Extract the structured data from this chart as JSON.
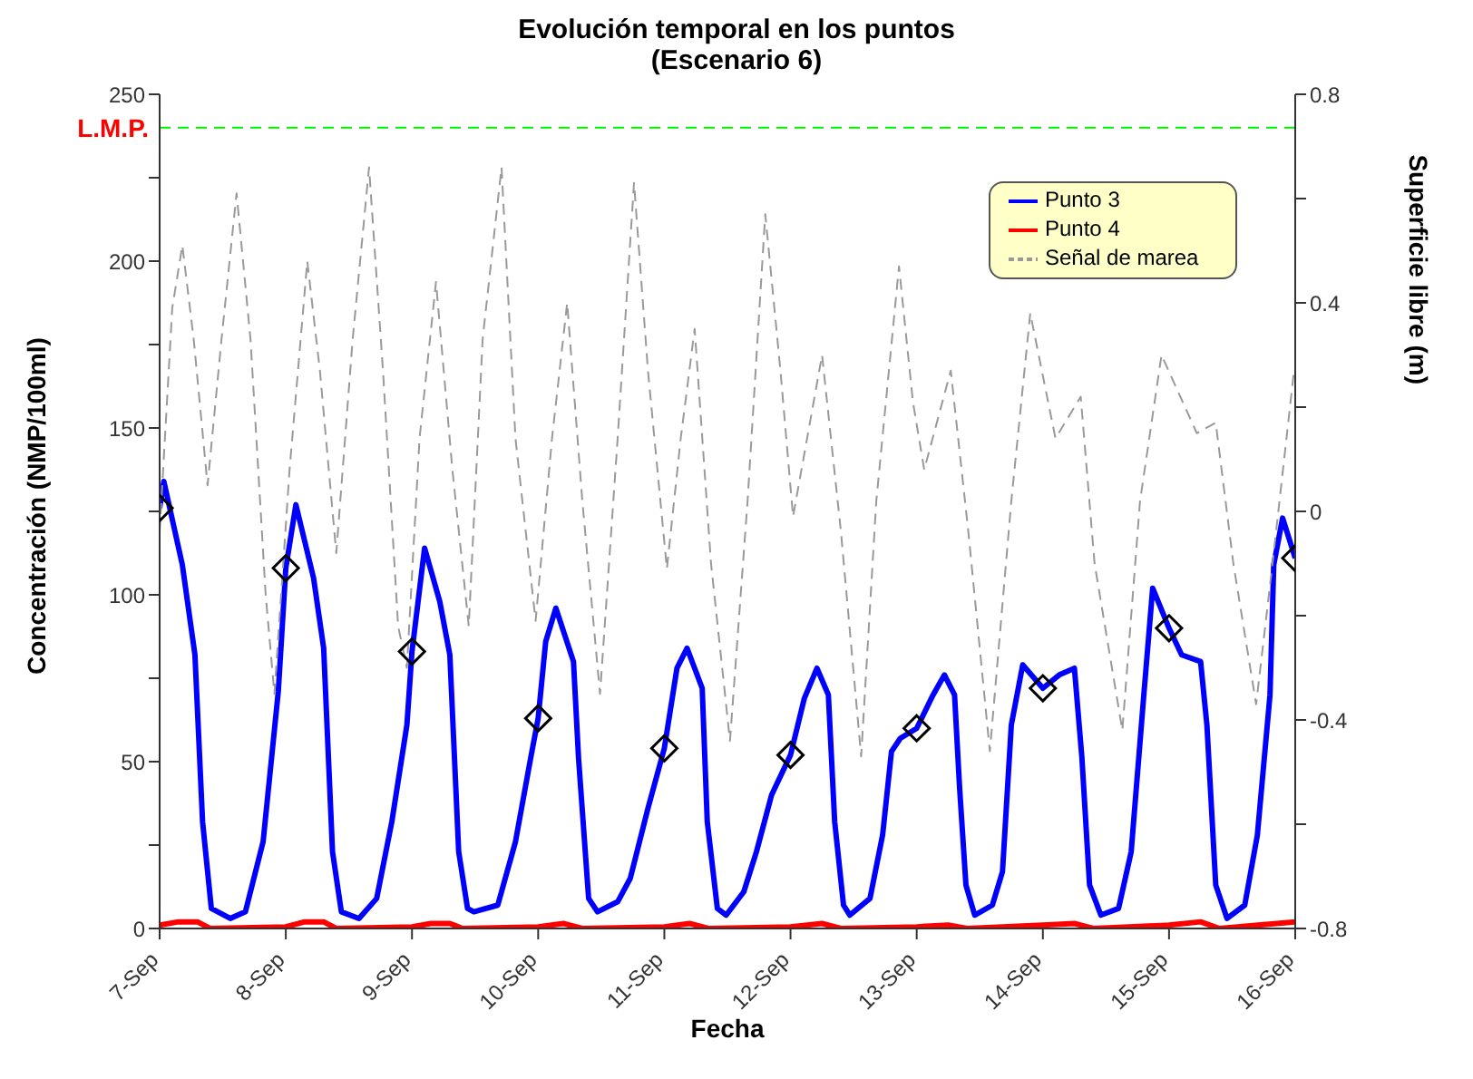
{
  "chart_data": {
    "type": "line",
    "title": "Evolución temporal en los puntos",
    "subtitle": "(Escenario 6)",
    "xlabel": "Fecha",
    "ylabel": "Concentración (NMP/100ml)",
    "y2label": "Superficie libre (m)",
    "xlim": [
      "--09-07",
      "--09-16"
    ],
    "xticks": [
      {
        "value": "--09-07",
        "label": "7-Sep"
      },
      {
        "value": "--09-08",
        "label": "8-Sep"
      },
      {
        "value": "--09-09",
        "label": "9-Sep"
      },
      {
        "value": "--09-10",
        "label": "10-Sep"
      },
      {
        "value": "--09-11",
        "label": "11-Sep"
      },
      {
        "value": "--09-12",
        "label": "12-Sep"
      },
      {
        "value": "--09-13",
        "label": "13-Sep"
      },
      {
        "value": "--09-14",
        "label": "14-Sep"
      },
      {
        "value": "--09-15",
        "label": "15-Sep"
      },
      {
        "value": "--09-16",
        "label": "16-Sep"
      }
    ],
    "ylim": [
      0,
      250
    ],
    "yticks": [
      0,
      {
        "value": 25,
        "label": null
      },
      50,
      {
        "value": 75,
        "label": null
      },
      100,
      {
        "value": 125,
        "label": null
      },
      150,
      {
        "value": 175,
        "label": null
      },
      200,
      {
        "value": 225,
        "label": null
      },
      250
    ],
    "y2lim": [
      -0.8,
      0.8
    ],
    "y2ticks": [
      -0.8,
      {
        "value": -0.6,
        "label": null
      },
      -0.4,
      {
        "value": -0.2,
        "label": null
      },
      0,
      {
        "value": 0.2,
        "label": null
      },
      0.4,
      {
        "value": 0.6,
        "label": null
      },
      0.8
    ],
    "legend": "top right",
    "ref_lines": [
      {
        "axis": "y",
        "value": 240,
        "label": "L.M.P.",
        "color": "#00ee00",
        "line_style": "dashed"
      }
    ],
    "series": [
      {
        "type": "scatter",
        "color": "#000000",
        "marker": "diamond",
        "x": [
          "--09-07",
          "--09-08",
          "--09-09",
          "--09-10",
          "--09-11",
          "--09-12",
          "--09-13",
          "--09-14",
          "--09-15",
          "--09-16"
        ],
        "values": [
          126,
          108,
          83,
          63,
          54,
          52,
          60,
          72,
          90,
          111
        ]
      },
      {
        "name": "Punto 3",
        "color": "#0000ff",
        "line_style": "solid",
        "x": [
          "--09-07T00:00",
          "--09-07T00:48",
          "--09-07T04:19",
          "--09-07T06:43",
          "--09-07T08:10",
          "--09-07T09:50",
          "--09-07T13:26",
          "--09-07T16:19",
          "--09-07T19:41",
          "--09-07T22:34",
          "--09-08T00:00",
          "--09-08T01:55",
          "--09-08T05:17",
          "--09-08T07:12",
          "--09-08T08:53",
          "--09-08T10:34",
          "--09-08T13:55",
          "--09-08T17:17",
          "--09-08T20:10",
          "--09-08T23:02",
          "--09-09T00:00",
          "--09-09T02:24",
          "--09-09T05:17",
          "--09-09T07:12",
          "--09-09T08:53",
          "--09-09T10:34",
          "--09-09T11:46",
          "--09-09T16:19",
          "--09-09T19:41",
          "--09-09T22:34",
          "--09-10T00:00",
          "--09-10T01:26",
          "--09-10T03:22",
          "--09-10T06:43",
          "--09-10T07:41",
          "--09-10T09:36",
          "--09-10T11:17",
          "--09-10T15:07",
          "--09-10T17:31",
          "--09-10T20:53",
          "--09-11T00:00",
          "--09-11T02:24",
          "--09-11T04:19",
          "--09-11T07:12",
          "--09-11T08:10",
          "--09-11T10:05",
          "--09-11T11:46",
          "--09-11T15:07",
          "--09-11T17:31",
          "--09-11T20:24",
          "--09-12T00:00",
          "--09-12T02:38",
          "--09-12T05:02",
          "--09-12T07:12",
          "--09-12T08:24",
          "--09-12T10:05",
          "--09-12T11:17",
          "--09-12T15:07",
          "--09-12T17:31",
          "--09-12T19:12",
          "--09-12T20:53",
          "--09-13T00:00",
          "--09-13T03:07",
          "--09-13T05:17",
          "--09-13T07:12",
          "--09-13T08:10",
          "--09-13T09:22",
          "--09-13T11:02",
          "--09-13T14:24",
          "--09-13T16:19",
          "--09-13T18:00",
          "--09-13T20:10",
          "--09-14T00:00",
          "--09-14T03:07",
          "--09-14T06:00",
          "--09-14T07:26",
          "--09-14T08:53",
          "--09-14T11:02",
          "--09-14T14:24",
          "--09-14T16:48",
          "--09-14T19:12",
          "--09-14T20:53",
          "--09-15T00:00",
          "--09-15T02:24",
          "--09-15T06:00",
          "--09-15T07:12",
          "--09-15T08:53",
          "--09-15T11:02",
          "--09-15T14:24",
          "--09-15T16:48",
          "--09-15T19:12",
          "--09-15T19:55",
          "--09-15T21:36",
          "--09-16T00:00"
        ],
        "values": [
          126,
          134,
          109,
          82,
          32,
          6,
          3,
          5,
          26,
          71,
          108,
          127,
          105,
          84,
          23,
          5,
          3,
          9,
          32,
          61,
          83,
          114,
          98,
          82,
          23,
          6,
          5,
          7,
          26,
          51,
          63,
          86,
          96,
          80,
          51,
          9,
          5,
          8,
          15,
          36,
          54,
          78,
          84,
          72,
          32,
          6,
          4,
          11,
          23,
          40,
          52,
          69,
          78,
          70,
          32,
          7,
          4,
          9,
          28,
          53,
          57,
          60,
          70,
          76,
          70,
          42,
          13,
          4,
          7,
          17,
          61,
          79,
          72,
          76,
          78,
          51,
          13,
          4,
          6,
          23,
          70,
          102,
          90,
          82,
          80,
          61,
          13,
          3,
          7,
          28,
          70,
          109,
          123,
          111
        ]
      },
      {
        "name": "Punto 4",
        "color": "#ff0000",
        "line_style": "solid",
        "x": [
          "--09-07T00:00",
          "--09-07T03:36",
          "--09-07T07:12",
          "--09-07T09:36",
          "--09-08T00:00",
          "--09-08T03:36",
          "--09-08T07:12",
          "--09-08T09:36",
          "--09-09T00:00",
          "--09-09T03:36",
          "--09-09T07:12",
          "--09-09T09:36",
          "--09-10T00:00",
          "--09-10T04:48",
          "--09-10T08:24",
          "--09-11T00:00",
          "--09-11T04:48",
          "--09-11T08:24",
          "--09-12T00:00",
          "--09-12T06:00",
          "--09-12T09:36",
          "--09-13T00:00",
          "--09-13T06:00",
          "--09-13T09:36",
          "--09-14T00:00",
          "--09-14T06:00",
          "--09-14T09:36",
          "--09-15T00:00",
          "--09-15T06:00",
          "--09-15T09:36",
          "--09-16T00:00"
        ],
        "values": [
          1,
          2,
          2,
          0,
          0.5,
          2,
          2,
          0,
          0.5,
          1.5,
          1.5,
          0,
          0.5,
          1.5,
          0,
          0.5,
          1.5,
          0,
          0.5,
          1.5,
          0,
          0.5,
          1,
          0,
          1,
          1.5,
          0,
          1,
          2,
          0,
          2
        ]
      },
      {
        "name": "Señal de marea",
        "color": "#999999",
        "axis": "y2",
        "line_style": "dashed",
        "x": [
          "--09-07T00:00",
          "--09-07T02:24",
          "--09-07T04:19",
          "--09-07T06:29",
          "--09-07T09:07",
          "--09-07T11:46",
          "--09-07T14:38",
          "--09-07T17:17",
          "--09-07T20:10",
          "--09-07T21:50",
          "--09-08T00:43",
          "--09-08T04:05",
          "--09-08T06:29",
          "--09-08T09:36",
          "--09-08T12:43",
          "--09-08T15:50",
          "--09-08T18:29",
          "--09-08T21:22",
          "--09-08T23:02",
          "--09-09T01:26",
          "--09-09T04:34",
          "--09-09T07:41",
          "--09-09T10:48",
          "--09-09T13:26",
          "--09-09T17:02",
          "--09-09T19:41",
          "--09-09T23:31",
          "--09-10T02:38",
          "--09-10T05:31",
          "--09-10T08:24",
          "--09-10T11:46",
          "--09-10T15:07",
          "--09-10T18:14",
          "--09-10T20:53",
          "--09-11T00:29",
          "--09-11T03:07",
          "--09-11T05:46",
          "--09-11T08:53",
          "--09-11T12:29",
          "--09-11T15:50",
          "--09-11T19:12",
          "--09-11T22:05",
          "--09-12T00:29",
          "--09-12T06:00",
          "--09-12T09:36",
          "--09-12T13:26",
          "--09-12T16:19",
          "--09-12T20:38",
          "--09-12T23:17",
          "--09-13T01:26",
          "--09-13T06:29",
          "--09-13T09:50",
          "--09-13T13:55",
          "--09-13T18:00",
          "--09-13T21:36",
          "--09-14T02:24",
          "--09-14T07:12",
          "--09-14T09:50",
          "--09-14T15:07",
          "--09-14T18:29",
          "--09-14T22:34",
          "--09-15T05:17",
          "--09-15T08:53",
          "--09-15T12:14",
          "--09-15T16:34",
          "--09-15T19:41",
          "--09-15T23:46"
        ],
        "values": [
          -0.04,
          0.39,
          0.51,
          0.33,
          0.05,
          0.33,
          0.61,
          0.33,
          -0.16,
          -0.35,
          0.08,
          0.48,
          0.27,
          -0.08,
          0.33,
          0.66,
          0.27,
          -0.22,
          -0.3,
          0.14,
          0.44,
          0.08,
          -0.22,
          0.33,
          0.66,
          0.14,
          -0.21,
          0.14,
          0.4,
          0.02,
          -0.35,
          0.14,
          0.63,
          0.27,
          -0.11,
          0.14,
          0.35,
          -0.1,
          -0.44,
          0.02,
          0.57,
          0.27,
          -0.01,
          0.3,
          -0.04,
          -0.47,
          0.02,
          0.47,
          0.21,
          0.08,
          0.27,
          -0.04,
          -0.46,
          0.02,
          0.38,
          0.14,
          0.22,
          -0.1,
          -0.42,
          0.02,
          0.3,
          0.15,
          0.17,
          -0.1,
          -0.37,
          -0.1,
          0.27
        ]
      }
    ]
  }
}
